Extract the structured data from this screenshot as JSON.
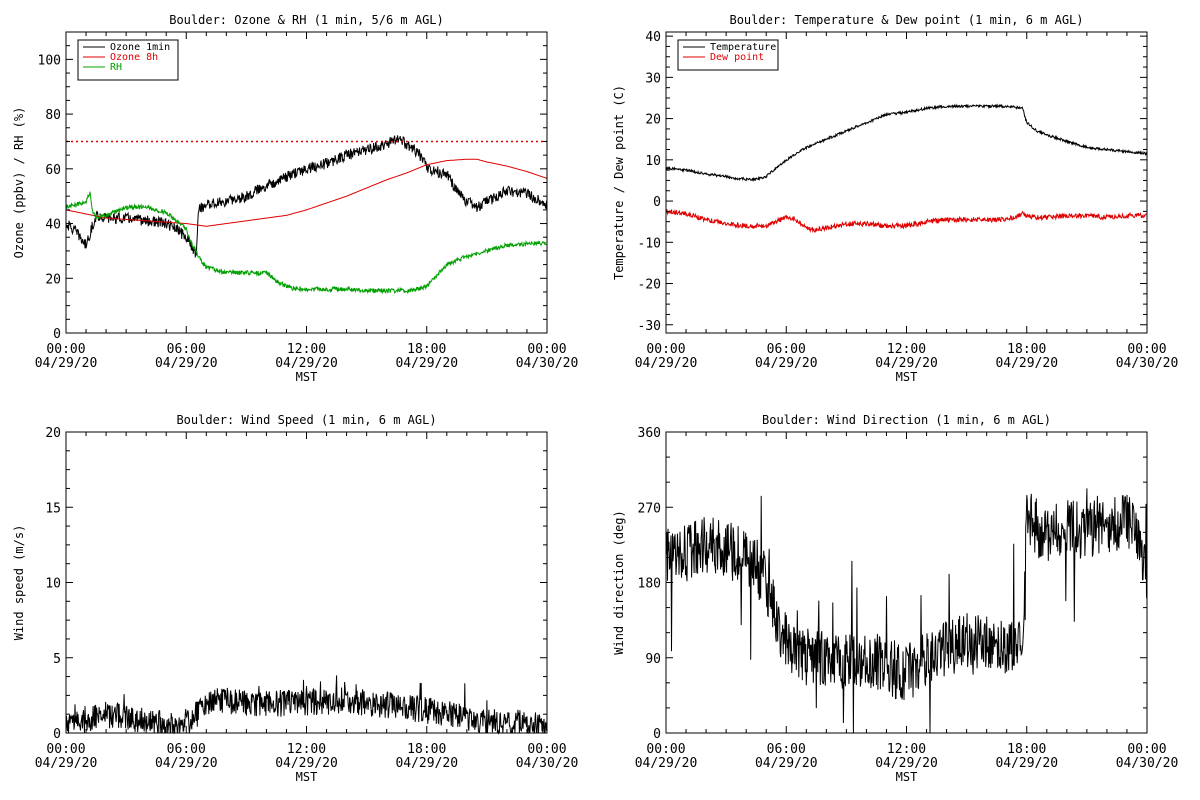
{
  "chart_data": [
    {
      "type": "line",
      "title": "Boulder: Ozone & RH (1 min, 5/6 m AGL)",
      "xlabel": "MST",
      "ylabel": "Ozone (ppbv) / RH (%)",
      "x_ticks": [
        {
          "time": "00:00",
          "date": "04/29/20"
        },
        {
          "time": "06:00",
          "date": "04/29/20"
        },
        {
          "time": "12:00",
          "date": "04/29/20"
        },
        {
          "time": "18:00",
          "date": "04/29/20"
        },
        {
          "time": "00:00",
          "date": "04/30/20"
        }
      ],
      "xlim_hours": [
        0,
        24
      ],
      "ylim": [
        0,
        110
      ],
      "y_ticks": [
        0,
        20,
        40,
        60,
        80,
        100
      ],
      "legend_position": "top-left",
      "reference_line": {
        "value": 70,
        "color": "#e00000",
        "style": "dotted"
      },
      "series": [
        {
          "name": "Ozone 1min",
          "color": "#000000",
          "noise": 2,
          "x_hours": [
            0,
            0.5,
            1,
            1.5,
            2,
            3,
            4,
            5,
            5.5,
            6,
            6.5,
            6.6,
            7,
            8,
            9,
            10,
            11,
            12,
            13,
            14,
            15,
            16,
            16.5,
            17,
            17.5,
            17.8,
            18,
            19,
            19.5,
            20,
            20.5,
            21,
            22,
            23,
            24
          ],
          "values": [
            40,
            37,
            32,
            43,
            42,
            42,
            41,
            40,
            38,
            35,
            29,
            45,
            47,
            48,
            50,
            54,
            57,
            60,
            62,
            65,
            67,
            69,
            71,
            69,
            66,
            64,
            60,
            58,
            52,
            48,
            46,
            48,
            52,
            51,
            47
          ]
        },
        {
          "name": "Ozone 8h",
          "color": "#e00000",
          "noise": 0,
          "x_hours": [
            0,
            2,
            4,
            6,
            6.5,
            7,
            8,
            9,
            10,
            11,
            12,
            13,
            14,
            15,
            16,
            17,
            18,
            19,
            20,
            20.5,
            21,
            22,
            23,
            24
          ],
          "values": [
            45,
            42,
            41,
            40,
            39.5,
            39,
            40,
            41,
            42,
            43,
            45,
            47.5,
            50,
            53,
            56,
            58.5,
            61.5,
            63,
            63.5,
            63.5,
            62.5,
            61,
            59,
            56.5
          ]
        },
        {
          "name": "RH",
          "color": "#00a000",
          "noise": 0.8,
          "x_hours": [
            0,
            0.5,
            1,
            1.1,
            1.2,
            1.3,
            1.5,
            2,
            3,
            4,
            5,
            5.5,
            6,
            6.3,
            6.7,
            7,
            8,
            9,
            10,
            10.5,
            11,
            11.5,
            12,
            13,
            14,
            15,
            16,
            17,
            17.5,
            18,
            18.5,
            19,
            20,
            21,
            22,
            23,
            24
          ],
          "values": [
            46,
            47,
            48,
            50,
            51,
            45,
            42,
            43,
            46,
            46,
            44,
            41,
            38,
            32,
            27,
            24,
            22,
            22,
            22,
            19,
            17,
            16,
            16,
            16,
            16,
            15.5,
            15.5,
            15.5,
            16,
            17,
            21,
            25,
            28,
            30,
            32,
            32.5,
            33
          ]
        }
      ]
    },
    {
      "type": "line",
      "title": "Boulder: Temperature & Dew point (1 min, 6 m AGL)",
      "xlabel": "MST",
      "ylabel": "Temperature / Dew point (C)",
      "x_ticks": [
        {
          "time": "00:00",
          "date": "04/29/20"
        },
        {
          "time": "06:00",
          "date": "04/29/20"
        },
        {
          "time": "12:00",
          "date": "04/29/20"
        },
        {
          "time": "18:00",
          "date": "04/29/20"
        },
        {
          "time": "00:00",
          "date": "04/30/20"
        }
      ],
      "xlim_hours": [
        0,
        24
      ],
      "ylim": [
        -32,
        41
      ],
      "y_ticks": [
        -30,
        -20,
        -10,
        0,
        10,
        20,
        30,
        40
      ],
      "legend_position": "top-left",
      "series": [
        {
          "name": "Temperature",
          "color": "#000000",
          "noise": 0.3,
          "x_hours": [
            0,
            1,
            2,
            3,
            3.5,
            4,
            4.5,
            5,
            6,
            7,
            8,
            9,
            10,
            11,
            12,
            13,
            14,
            15,
            16,
            17,
            17.8,
            18,
            18.5,
            19,
            20,
            21,
            22,
            23,
            24
          ],
          "values": [
            8,
            7.5,
            6.5,
            6,
            5.5,
            5.3,
            5.3,
            6,
            10,
            13,
            15,
            17,
            19,
            21,
            21.5,
            22.5,
            23,
            23,
            23,
            23,
            22.5,
            19,
            17,
            16,
            14.5,
            13,
            12.5,
            12,
            11.5
          ]
        },
        {
          "name": "Dew point",
          "color": "#e00000",
          "noise": 0.6,
          "x_hours": [
            0,
            1,
            2,
            3,
            4,
            5,
            5.5,
            6,
            6.3,
            7,
            7.5,
            8,
            9,
            10,
            11,
            12,
            13,
            14,
            15,
            16,
            17,
            17.9,
            18,
            18.5,
            19,
            20,
            21,
            22,
            23,
            24
          ],
          "values": [
            -2.5,
            -3,
            -4.5,
            -5.5,
            -6,
            -6,
            -5,
            -4,
            -4,
            -6.5,
            -7,
            -6.5,
            -5.5,
            -5.5,
            -6,
            -6,
            -5,
            -4.5,
            -4.5,
            -4.5,
            -4.5,
            -3,
            -3.5,
            -4,
            -4,
            -3.5,
            -3.5,
            -4,
            -3.5,
            -3.5
          ]
        }
      ]
    },
    {
      "type": "line",
      "title": "Boulder: Wind Speed (1 min, 6 m AGL)",
      "xlabel": "MST",
      "ylabel": "Wind speed (m/s)",
      "x_ticks": [
        {
          "time": "00:00",
          "date": "04/29/20"
        },
        {
          "time": "06:00",
          "date": "04/29/20"
        },
        {
          "time": "12:00",
          "date": "04/29/20"
        },
        {
          "time": "18:00",
          "date": "04/29/20"
        },
        {
          "time": "00:00",
          "date": "04/30/20"
        }
      ],
      "xlim_hours": [
        0,
        24
      ],
      "ylim": [
        0,
        20
      ],
      "y_ticks": [
        0,
        5,
        10,
        15,
        20
      ],
      "series": [
        {
          "color": "#000000",
          "noise": 0.9,
          "x_hours": [
            0,
            1,
            2,
            3,
            4,
            5,
            5.5,
            6,
            6.5,
            7,
            8,
            9,
            10,
            11,
            12,
            13,
            14,
            15,
            16,
            17,
            18,
            19,
            20,
            21,
            22,
            23,
            24
          ],
          "values": [
            0.5,
            0.8,
            1.2,
            1.0,
            0.8,
            0.5,
            0.4,
            0.6,
            1.2,
            2.0,
            2.2,
            2.0,
            1.9,
            2.0,
            2.0,
            2.1,
            2.2,
            2.0,
            1.9,
            1.7,
            1.5,
            1.3,
            1.0,
            0.7,
            0.7,
            0.6,
            0.5
          ],
          "min": 0
        }
      ]
    },
    {
      "type": "line",
      "title": "Boulder: Wind Direction (1 min, 6 m AGL)",
      "xlabel": "MST",
      "ylabel": "Wind direction (deg)",
      "x_ticks": [
        {
          "time": "00:00",
          "date": "04/29/20"
        },
        {
          "time": "06:00",
          "date": "04/29/20"
        },
        {
          "time": "12:00",
          "date": "04/29/20"
        },
        {
          "time": "18:00",
          "date": "04/29/20"
        },
        {
          "time": "00:00",
          "date": "04/30/20"
        }
      ],
      "xlim_hours": [
        0,
        24
      ],
      "ylim": [
        0,
        360
      ],
      "y_ticks": [
        0,
        90,
        180,
        270,
        360
      ],
      "series": [
        {
          "color": "#000000",
          "noise": 35,
          "x_hours": [
            0,
            1,
            2,
            3,
            4,
            4.5,
            5,
            5.3,
            5.6,
            6,
            6.5,
            7,
            8,
            9,
            10,
            11,
            12,
            13,
            14,
            15,
            16,
            17,
            17.8,
            18,
            18.5,
            19,
            20,
            20.5,
            21,
            22,
            23,
            23.5,
            24
          ],
          "values": [
            210,
            215,
            225,
            220,
            210,
            200,
            180,
            160,
            120,
            110,
            100,
            95,
            90,
            85,
            90,
            80,
            70,
            90,
            100,
            110,
            110,
            100,
            120,
            260,
            245,
            240,
            250,
            245,
            240,
            250,
            255,
            230,
            180
          ],
          "min": 0,
          "max": 360
        }
      ]
    }
  ]
}
